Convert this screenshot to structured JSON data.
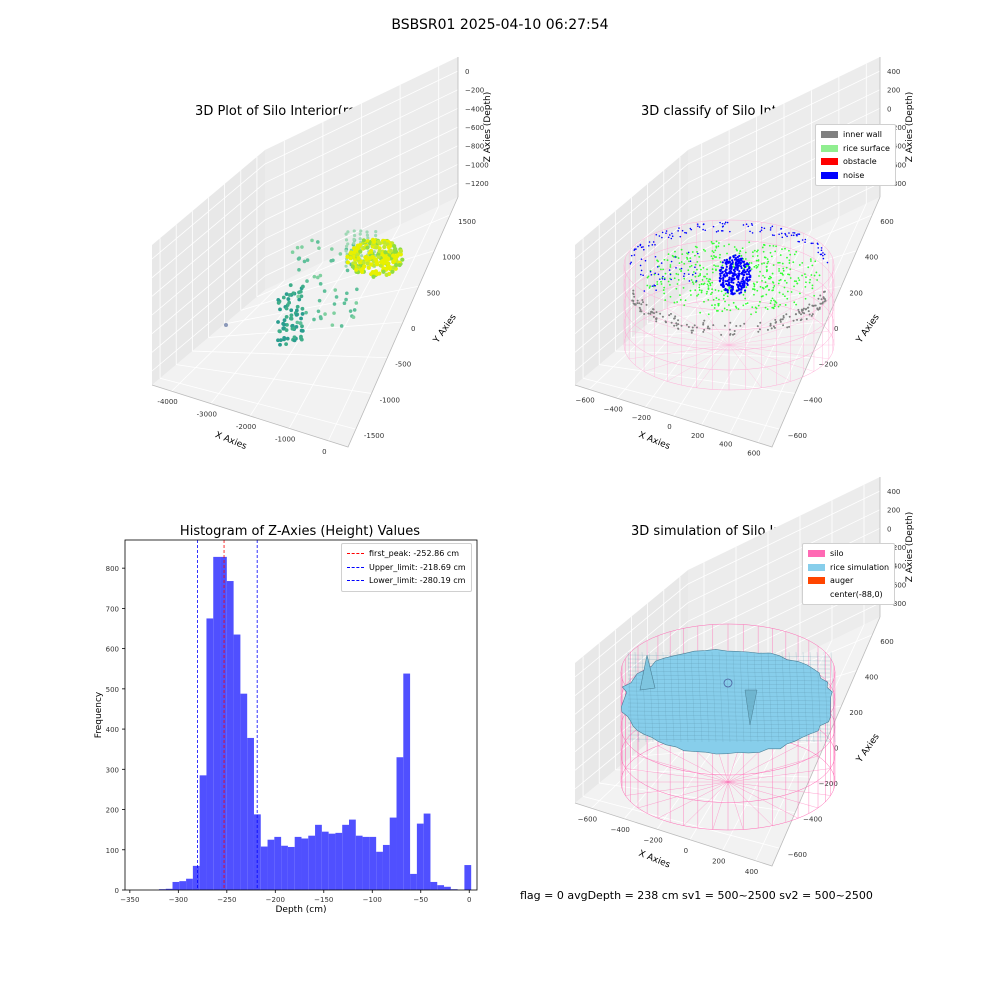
{
  "suptitle": "BSBSR01 2025-04-10 06:27:54",
  "status_text": "flag = 0     avgDepth = 238 cm  sv1 = 500~2500  sv2 = 500~2500",
  "chart_data": [
    {
      "type": "scatter",
      "title": "3D Plot of Silo Interior(row data)",
      "xlabel": "X Axies",
      "ylabel": "Y Axies",
      "zlabel": "Z Axies (Depth)",
      "xticks": [
        "-4000",
        "-3000",
        "-2000",
        "-1000",
        "0"
      ],
      "yticks": [
        "-1500",
        "-1000",
        "-500",
        "0",
        "500",
        "1000",
        "1500"
      ],
      "zticks": [
        "0",
        "−200",
        "−400",
        "−600",
        "−800",
        "−1000",
        "−1200"
      ],
      "colors": {
        "low": "#2a9d8f",
        "mid": "#7fd0a0",
        "high": "#e8f000"
      }
    },
    {
      "type": "scatter",
      "title": "3D classify of Silo Interior",
      "xlabel": "X Axies",
      "ylabel": "Y Axies",
      "zlabel": "Z Axies (Depth)",
      "xticks": [
        "−600",
        "−400",
        "−200",
        "0",
        "200",
        "400",
        "600"
      ],
      "yticks": [
        "−600",
        "−400",
        "−200",
        "0",
        "200",
        "400",
        "600"
      ],
      "zticks": [
        "400",
        "200",
        "0",
        "−200",
        "−400",
        "−600",
        "−800"
      ],
      "legend": [
        {
          "label": "inner wall",
          "color": "#808080"
        },
        {
          "label": "rice surface",
          "color": "#90ee90"
        },
        {
          "label": "obstacle",
          "color": "#ff0000"
        },
        {
          "label": "noise",
          "color": "#0000ff"
        }
      ]
    },
    {
      "type": "bar",
      "title": "Histogram of Z-Axies (Height) Values",
      "xlabel": "Depth (cm)",
      "ylabel": "Frequency",
      "xlim": [
        -355,
        8
      ],
      "ylim": [
        0,
        870
      ],
      "xticks": [
        "−350",
        "−300",
        "−250",
        "−200",
        "−150",
        "−100",
        "−50",
        "0"
      ],
      "yticks": [
        "0",
        "100",
        "200",
        "300",
        "400",
        "500",
        "600",
        "700",
        "800"
      ],
      "bar_color": "#5050ff",
      "bin_width": 7,
      "bins_start": [
        -320,
        -313,
        -306,
        -299,
        -292,
        -285,
        -278,
        -271,
        -264,
        -257,
        -250,
        -243,
        -236,
        -229,
        -222,
        -215,
        -208,
        -201,
        -194,
        -187,
        -180,
        -173,
        -166,
        -159,
        -152,
        -145,
        -138,
        -131,
        -124,
        -117,
        -110,
        -103,
        -96,
        -89,
        -82,
        -75,
        -68,
        -61,
        -54,
        -47,
        -40,
        -33,
        -26,
        -19,
        -12,
        -5
      ],
      "values": [
        2,
        3,
        20,
        22,
        28,
        60,
        285,
        675,
        828,
        828,
        768,
        635,
        488,
        378,
        188,
        108,
        125,
        132,
        110,
        107,
        132,
        128,
        135,
        162,
        145,
        140,
        142,
        162,
        175,
        135,
        132,
        132,
        95,
        112,
        180,
        330,
        538,
        40,
        165,
        190,
        20,
        12,
        8,
        2,
        0,
        62
      ],
      "vlines": [
        {
          "label": "first_peak: -252.86 cm",
          "x": -252.86,
          "color": "#ff0000"
        },
        {
          "label": "Upper_limit: -218.69 cm",
          "x": -218.69,
          "color": "#0000ff"
        },
        {
          "label": "Lower_limit: -280.19 cm",
          "x": -280.19,
          "color": "#0000ff"
        }
      ]
    },
    {
      "type": "surface",
      "title": "3D simulation of Silo Interior",
      "xlabel": "X Axies",
      "ylabel": "Y Axies",
      "zlabel": "Z Axies (Depth)",
      "xticks": [
        "−600",
        "−400",
        "−200",
        "0",
        "200",
        "400"
      ],
      "yticks": [
        "−600",
        "−400",
        "−200",
        "0",
        "200",
        "400",
        "600"
      ],
      "zticks": [
        "400",
        "200",
        "0",
        "−200",
        "−400",
        "−600",
        "−800"
      ],
      "legend": [
        {
          "label": "silo",
          "color": "#ff69b4"
        },
        {
          "label": "rice simulation",
          "color": "#87ceeb"
        },
        {
          "label": "auger",
          "color": "#ff4500"
        },
        {
          "label": "center(-88,0)",
          "color": "#ffffff"
        }
      ]
    }
  ]
}
